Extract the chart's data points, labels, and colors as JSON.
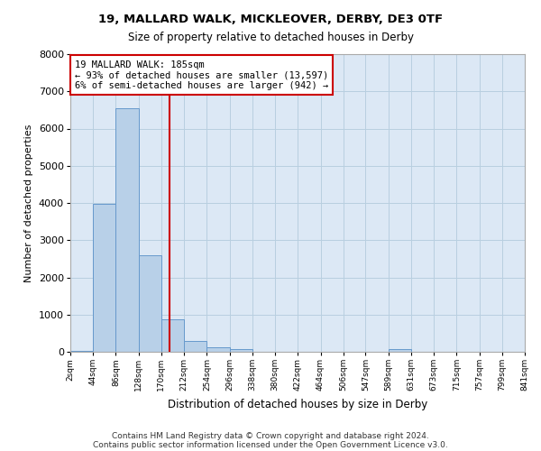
{
  "title1": "19, MALLARD WALK, MICKLEOVER, DERBY, DE3 0TF",
  "title2": "Size of property relative to detached houses in Derby",
  "xlabel": "Distribution of detached houses by size in Derby",
  "ylabel": "Number of detached properties",
  "bar_color": "#b8d0e8",
  "bar_edge_color": "#6699cc",
  "vline_color": "#cc0000",
  "vline_x": 185,
  "annotation_text": "19 MALLARD WALK: 185sqm\n← 93% of detached houses are smaller (13,597)\n6% of semi-detached houses are larger (942) →",
  "annotation_box_color": "#cc0000",
  "bins_left": [
    2,
    44,
    86,
    128,
    170,
    212,
    254,
    296,
    338,
    380,
    422,
    464,
    506,
    547,
    589,
    631,
    673,
    715,
    757,
    799
  ],
  "bin_width": 42,
  "counts": [
    30,
    3980,
    6550,
    2600,
    870,
    280,
    115,
    80,
    0,
    0,
    0,
    0,
    0,
    0,
    70,
    0,
    0,
    0,
    0,
    0
  ],
  "tick_labels": [
    "2sqm",
    "44sqm",
    "86sqm",
    "128sqm",
    "170sqm",
    "212sqm",
    "254sqm",
    "296sqm",
    "338sqm",
    "380sqm",
    "422sqm",
    "464sqm",
    "506sqm",
    "547sqm",
    "589sqm",
    "631sqm",
    "673sqm",
    "715sqm",
    "757sqm",
    "799sqm",
    "841sqm"
  ],
  "ylim": [
    0,
    8000
  ],
  "yticks": [
    0,
    1000,
    2000,
    3000,
    4000,
    5000,
    6000,
    7000,
    8000
  ],
  "footnote1": "Contains HM Land Registry data © Crown copyright and database right 2024.",
  "footnote2": "Contains public sector information licensed under the Open Government Licence v3.0.",
  "bg_color": "#ffffff",
  "plot_bg_color": "#dce8f5",
  "grid_color": "#b8cfe0"
}
